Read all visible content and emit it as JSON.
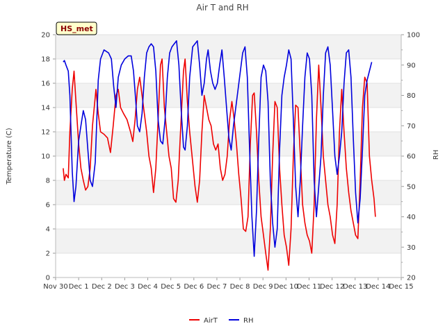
{
  "colors": {
    "airt": "#ee0000",
    "rh": "#0000dd",
    "band": "#f2f2f2",
    "badge_bg": "#ffffcc",
    "badge_text": "#8b0000"
  },
  "badge": {
    "label": "HS_met"
  },
  "chart_data": {
    "type": "line",
    "title": "Air T and RH",
    "xlabel": "",
    "ylabel": "Temperature (C)",
    "y2label": "RH",
    "xlim": [
      0,
      15
    ],
    "ylim": [
      0,
      20
    ],
    "y2lim": [
      20,
      100
    ],
    "x_ticks": [
      {
        "x": 0,
        "label": "Nov 30"
      },
      {
        "x": 1,
        "label": "Dec 1"
      },
      {
        "x": 2,
        "label": "Dec 2"
      },
      {
        "x": 3,
        "label": "Dec 3"
      },
      {
        "x": 4,
        "label": "Dec 4"
      },
      {
        "x": 5,
        "label": "Dec 5"
      },
      {
        "x": 6,
        "label": "Dec 6"
      },
      {
        "x": 7,
        "label": "Dec 7"
      },
      {
        "x": 8,
        "label": "Dec 8"
      },
      {
        "x": 9,
        "label": "Dec 9"
      },
      {
        "x": 10,
        "label": "Dec 10"
      },
      {
        "x": 11,
        "label": "Dec 11"
      },
      {
        "x": 12,
        "label": "Dec 12"
      },
      {
        "x": 13,
        "label": "Dec 13"
      },
      {
        "x": 14,
        "label": "Dec 14"
      },
      {
        "x": 15,
        "label": "Dec 15"
      }
    ],
    "y_ticks": [
      {
        "v": 0,
        "label": "0"
      },
      {
        "v": 2,
        "label": "2"
      },
      {
        "v": 4,
        "label": "4"
      },
      {
        "v": 6,
        "label": "6"
      },
      {
        "v": 8,
        "label": "8"
      },
      {
        "v": 10,
        "label": "10"
      },
      {
        "v": 12,
        "label": "12"
      },
      {
        "v": 14,
        "label": "14"
      },
      {
        "v": 16,
        "label": "16"
      },
      {
        "v": 18,
        "label": "18"
      },
      {
        "v": 20,
        "label": "20"
      }
    ],
    "y2_ticks": [
      {
        "v": 20,
        "label": "20"
      },
      {
        "v": 30,
        "label": "30"
      },
      {
        "v": 40,
        "label": "40"
      },
      {
        "v": 50,
        "label": "50"
      },
      {
        "v": 60,
        "label": "60"
      },
      {
        "v": 70,
        "label": "70"
      },
      {
        "v": 80,
        "label": "80"
      },
      {
        "v": 90,
        "label": "90"
      },
      {
        "v": 100,
        "label": "100"
      }
    ],
    "series": [
      {
        "name": "AirT",
        "axis": "left",
        "points": [
          [
            0.33,
            9.0
          ],
          [
            0.38,
            8.0
          ],
          [
            0.45,
            8.5
          ],
          [
            0.55,
            8.2
          ],
          [
            0.62,
            12.0
          ],
          [
            0.72,
            15.5
          ],
          [
            0.8,
            17.0
          ],
          [
            0.88,
            14.5
          ],
          [
            1.0,
            11.0
          ],
          [
            1.1,
            9.0
          ],
          [
            1.2,
            8.0
          ],
          [
            1.3,
            7.2
          ],
          [
            1.4,
            7.5
          ],
          [
            1.5,
            9.0
          ],
          [
            1.6,
            12.5
          ],
          [
            1.75,
            15.5
          ],
          [
            1.85,
            13.5
          ],
          [
            1.95,
            12.0
          ],
          [
            2.1,
            11.8
          ],
          [
            2.25,
            11.5
          ],
          [
            2.38,
            10.3
          ],
          [
            2.5,
            12.5
          ],
          [
            2.62,
            15.0
          ],
          [
            2.72,
            15.5
          ],
          [
            2.82,
            14.0
          ],
          [
            2.95,
            13.5
          ],
          [
            3.1,
            13.0
          ],
          [
            3.25,
            12.0
          ],
          [
            3.35,
            11.2
          ],
          [
            3.45,
            13.0
          ],
          [
            3.55,
            15.5
          ],
          [
            3.65,
            16.5
          ],
          [
            3.75,
            15.0
          ],
          [
            3.85,
            13.5
          ],
          [
            3.95,
            12.0
          ],
          [
            4.05,
            10.0
          ],
          [
            4.15,
            9.0
          ],
          [
            4.25,
            7.0
          ],
          [
            4.35,
            9.0
          ],
          [
            4.45,
            13.0
          ],
          [
            4.55,
            17.5
          ],
          [
            4.62,
            18.0
          ],
          [
            4.72,
            14.0
          ],
          [
            4.82,
            12.0
          ],
          [
            4.92,
            10.0
          ],
          [
            5.02,
            9.0
          ],
          [
            5.12,
            6.5
          ],
          [
            5.22,
            6.2
          ],
          [
            5.32,
            8.0
          ],
          [
            5.42,
            12.0
          ],
          [
            5.55,
            17.0
          ],
          [
            5.62,
            18.0
          ],
          [
            5.72,
            14.5
          ],
          [
            5.82,
            12.0
          ],
          [
            5.95,
            9.5
          ],
          [
            6.05,
            7.5
          ],
          [
            6.15,
            6.2
          ],
          [
            6.25,
            8.0
          ],
          [
            6.35,
            12.0
          ],
          [
            6.45,
            15.0
          ],
          [
            6.55,
            14.0
          ],
          [
            6.65,
            13.0
          ],
          [
            6.75,
            12.5
          ],
          [
            6.85,
            11.0
          ],
          [
            6.95,
            10.5
          ],
          [
            7.05,
            11.0
          ],
          [
            7.15,
            9.0
          ],
          [
            7.25,
            8.0
          ],
          [
            7.35,
            8.5
          ],
          [
            7.45,
            10.0
          ],
          [
            7.55,
            13.0
          ],
          [
            7.65,
            14.5
          ],
          [
            7.75,
            13.0
          ],
          [
            7.85,
            11.0
          ],
          [
            7.95,
            8.5
          ],
          [
            8.05,
            6.5
          ],
          [
            8.15,
            4.0
          ],
          [
            8.25,
            3.8
          ],
          [
            8.35,
            5.0
          ],
          [
            8.45,
            11.0
          ],
          [
            8.55,
            15.0
          ],
          [
            8.62,
            15.2
          ],
          [
            8.72,
            12.0
          ],
          [
            8.82,
            8.0
          ],
          [
            8.92,
            5.0
          ],
          [
            9.02,
            3.5
          ],
          [
            9.12,
            2.0
          ],
          [
            9.22,
            0.6
          ],
          [
            9.32,
            4.0
          ],
          [
            9.42,
            10.0
          ],
          [
            9.52,
            14.5
          ],
          [
            9.62,
            14.0
          ],
          [
            9.72,
            9.0
          ],
          [
            9.82,
            6.0
          ],
          [
            9.92,
            3.5
          ],
          [
            10.02,
            2.5
          ],
          [
            10.12,
            1.0
          ],
          [
            10.22,
            4.0
          ],
          [
            10.32,
            10.0
          ],
          [
            10.42,
            14.2
          ],
          [
            10.52,
            14.0
          ],
          [
            10.62,
            10.0
          ],
          [
            10.72,
            6.0
          ],
          [
            10.82,
            4.5
          ],
          [
            10.92,
            3.5
          ],
          [
            11.02,
            3.0
          ],
          [
            11.12,
            2.0
          ],
          [
            11.22,
            6.0
          ],
          [
            11.32,
            13.0
          ],
          [
            11.42,
            17.5
          ],
          [
            11.52,
            14.0
          ],
          [
            11.62,
            10.0
          ],
          [
            11.72,
            8.0
          ],
          [
            11.82,
            6.0
          ],
          [
            11.92,
            5.0
          ],
          [
            12.02,
            3.5
          ],
          [
            12.12,
            2.8
          ],
          [
            12.22,
            6.0
          ],
          [
            12.32,
            12.0
          ],
          [
            12.42,
            15.5
          ],
          [
            12.52,
            12.0
          ],
          [
            12.62,
            9.0
          ],
          [
            12.72,
            7.0
          ],
          [
            12.82,
            5.5
          ],
          [
            12.92,
            4.5
          ],
          [
            13.02,
            3.5
          ],
          [
            13.12,
            3.2
          ],
          [
            13.22,
            8.0
          ],
          [
            13.32,
            14.0
          ],
          [
            13.42,
            16.5
          ],
          [
            13.52,
            16.0
          ],
          [
            13.62,
            10.0
          ],
          [
            13.72,
            8.0
          ],
          [
            13.82,
            6.5
          ],
          [
            13.88,
            5.0
          ]
        ]
      },
      {
        "name": "RH",
        "axis": "right",
        "points": [
          [
            0.33,
            91.0
          ],
          [
            0.38,
            91.5
          ],
          [
            0.45,
            90.0
          ],
          [
            0.55,
            88.0
          ],
          [
            0.62,
            80.0
          ],
          [
            0.72,
            55.0
          ],
          [
            0.8,
            45.0
          ],
          [
            0.88,
            50.0
          ],
          [
            1.0,
            65.0
          ],
          [
            1.1,
            70.0
          ],
          [
            1.2,
            75.0
          ],
          [
            1.3,
            72.0
          ],
          [
            1.4,
            62.0
          ],
          [
            1.5,
            52.0
          ],
          [
            1.6,
            50.0
          ],
          [
            1.72,
            58.0
          ],
          [
            1.85,
            85.0
          ],
          [
            1.95,
            92.0
          ],
          [
            2.1,
            95.0
          ],
          [
            2.3,
            94.0
          ],
          [
            2.42,
            92.0
          ],
          [
            2.52,
            83.0
          ],
          [
            2.62,
            76.0
          ],
          [
            2.72,
            86.0
          ],
          [
            2.85,
            90.0
          ],
          [
            3.0,
            92.0
          ],
          [
            3.15,
            93.0
          ],
          [
            3.28,
            93.0
          ],
          [
            3.38,
            88.0
          ],
          [
            3.48,
            78.0
          ],
          [
            3.55,
            70.0
          ],
          [
            3.65,
            68.0
          ],
          [
            3.75,
            74.0
          ],
          [
            3.85,
            86.0
          ],
          [
            3.95,
            94.0
          ],
          [
            4.05,
            96.0
          ],
          [
            4.15,
            97.0
          ],
          [
            4.25,
            96.0
          ],
          [
            4.35,
            88.0
          ],
          [
            4.45,
            72.0
          ],
          [
            4.55,
            65.0
          ],
          [
            4.65,
            64.0
          ],
          [
            4.75,
            72.0
          ],
          [
            4.85,
            86.0
          ],
          [
            4.95,
            94.0
          ],
          [
            5.05,
            96.0
          ],
          [
            5.15,
            97.0
          ],
          [
            5.25,
            98.0
          ],
          [
            5.35,
            90.0
          ],
          [
            5.45,
            75.0
          ],
          [
            5.55,
            63.0
          ],
          [
            5.62,
            62.0
          ],
          [
            5.72,
            70.0
          ],
          [
            5.82,
            86.0
          ],
          [
            5.95,
            96.0
          ],
          [
            6.05,
            97.0
          ],
          [
            6.15,
            98.0
          ],
          [
            6.25,
            90.0
          ],
          [
            6.35,
            80.0
          ],
          [
            6.45,
            84.0
          ],
          [
            6.55,
            92.0
          ],
          [
            6.62,
            95.0
          ],
          [
            6.72,
            88.0
          ],
          [
            6.82,
            84.0
          ],
          [
            6.92,
            82.0
          ],
          [
            7.02,
            84.0
          ],
          [
            7.12,
            90.0
          ],
          [
            7.22,
            95.0
          ],
          [
            7.32,
            86.0
          ],
          [
            7.42,
            76.0
          ],
          [
            7.52,
            66.0
          ],
          [
            7.62,
            62.0
          ],
          [
            7.72,
            70.0
          ],
          [
            7.82,
            76.0
          ],
          [
            7.92,
            82.0
          ],
          [
            8.02,
            88.0
          ],
          [
            8.12,
            94.0
          ],
          [
            8.22,
            96.0
          ],
          [
            8.32,
            86.0
          ],
          [
            8.42,
            62.0
          ],
          [
            8.52,
            40.0
          ],
          [
            8.62,
            27.0
          ],
          [
            8.72,
            42.0
          ],
          [
            8.82,
            66.0
          ],
          [
            8.92,
            86.0
          ],
          [
            9.02,
            90.0
          ],
          [
            9.12,
            88.0
          ],
          [
            9.22,
            78.0
          ],
          [
            9.32,
            52.0
          ],
          [
            9.42,
            38.0
          ],
          [
            9.52,
            30.0
          ],
          [
            9.62,
            36.0
          ],
          [
            9.72,
            62.0
          ],
          [
            9.82,
            80.0
          ],
          [
            9.92,
            86.0
          ],
          [
            10.02,
            90.0
          ],
          [
            10.12,
            95.0
          ],
          [
            10.22,
            92.0
          ],
          [
            10.32,
            72.0
          ],
          [
            10.42,
            50.0
          ],
          [
            10.52,
            40.0
          ],
          [
            10.62,
            52.0
          ],
          [
            10.72,
            70.0
          ],
          [
            10.82,
            86.0
          ],
          [
            10.92,
            94.0
          ],
          [
            11.02,
            92.0
          ],
          [
            11.12,
            80.0
          ],
          [
            11.22,
            52.0
          ],
          [
            11.32,
            40.0
          ],
          [
            11.42,
            50.0
          ],
          [
            11.52,
            60.0
          ],
          [
            11.62,
            80.0
          ],
          [
            11.72,
            94.0
          ],
          [
            11.82,
            96.0
          ],
          [
            11.92,
            90.0
          ],
          [
            12.02,
            75.0
          ],
          [
            12.12,
            60.0
          ],
          [
            12.22,
            54.0
          ],
          [
            12.32,
            60.0
          ],
          [
            12.42,
            68.0
          ],
          [
            12.52,
            84.0
          ],
          [
            12.62,
            94.0
          ],
          [
            12.72,
            95.0
          ],
          [
            12.82,
            86.0
          ],
          [
            12.92,
            66.0
          ],
          [
            13.02,
            48.0
          ],
          [
            13.12,
            38.0
          ],
          [
            13.22,
            46.0
          ],
          [
            13.32,
            62.0
          ],
          [
            13.42,
            80.0
          ],
          [
            13.52,
            85.0
          ],
          [
            13.62,
            88.0
          ],
          [
            13.72,
            91.0
          ]
        ]
      }
    ],
    "legend": {
      "placement": "bottom-center",
      "entries": [
        "AirT",
        "RH"
      ]
    }
  }
}
